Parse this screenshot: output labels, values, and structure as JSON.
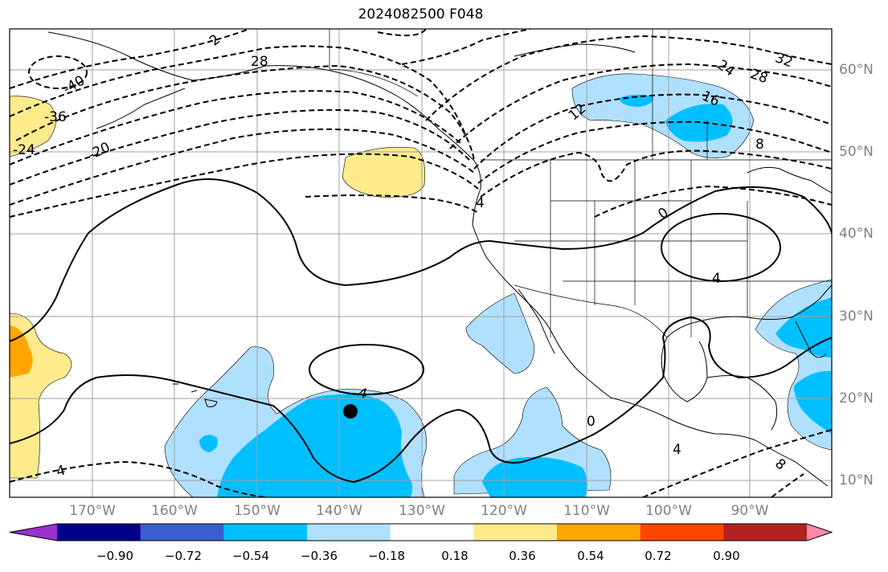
{
  "title": "2024082500 F048",
  "map": {
    "projection": "equirectangular",
    "extent": {
      "lon_min": -180,
      "lon_max": -80,
      "lat_min": 8,
      "lat_max": 65
    },
    "grid": true,
    "lon_labels": [
      "170°W",
      "160°W",
      "150°W",
      "140°W",
      "130°W",
      "120°W",
      "110°W",
      "100°W",
      "90°W"
    ],
    "lat_labels": [
      "60°N",
      "50°N",
      "40°N",
      "30°N",
      "20°N",
      "10°N"
    ],
    "marker": {
      "shape": "filled-circle",
      "color": "#000000",
      "lon": -138,
      "lat": 18.5
    },
    "contour_labels": [
      "-40",
      "-36",
      "-24",
      "-20",
      "2",
      "28",
      "4",
      "12",
      "16",
      "24",
      "28",
      "32",
      "8",
      "0",
      "4",
      "4",
      "0",
      "4",
      "8"
    ],
    "fill_colors_present": [
      "#fdeb8c",
      "#ffa500",
      "#b0e0ff",
      "#00bfff"
    ]
  },
  "colorbar": {
    "ticks": [
      "−0.90",
      "−0.72",
      "−0.54",
      "−0.36",
      "−0.18",
      "0.18",
      "0.36",
      "0.54",
      "0.72",
      "0.90"
    ],
    "colors": [
      "#9932cc",
      "#00008b",
      "#3a5fcd",
      "#00bfff",
      "#b0e0ff",
      "#ffffff",
      "#fdeb8c",
      "#ffa500",
      "#ff4500",
      "#b22222",
      "#ff88aa"
    ],
    "extend": "both"
  }
}
